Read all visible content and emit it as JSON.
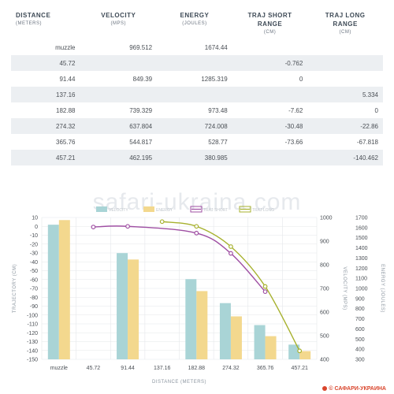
{
  "table": {
    "headers": [
      {
        "label": "DISTANCE",
        "unit": "(METERS)"
      },
      {
        "label": "VELOCITY",
        "unit": "(MPS)"
      },
      {
        "label": "ENERGY",
        "unit": "(JOULES)"
      },
      {
        "label": "TRAJ SHORT RANGE",
        "unit": "(CM)"
      },
      {
        "label": "TRAJ LONG RANGE",
        "unit": "(CM)"
      }
    ],
    "rows": [
      [
        "muzzle",
        "969.512",
        "1674.44",
        "",
        ""
      ],
      [
        "45.72",
        "",
        "",
        "-0.762",
        ""
      ],
      [
        "91.44",
        "849.39",
        "1285.319",
        "0",
        ""
      ],
      [
        "137.16",
        "",
        "",
        "",
        "5.334"
      ],
      [
        "182.88",
        "739.329",
        "973.48",
        "-7.62",
        "0"
      ],
      [
        "274.32",
        "637.804",
        "724.008",
        "-30.48",
        "-22.86"
      ],
      [
        "365.76",
        "544.817",
        "528.77",
        "-73.66",
        "-67.818"
      ],
      [
        "457.21",
        "462.195",
        "380.985",
        "",
        "-140.462"
      ]
    ]
  },
  "watermark": "safari-ukraina.com",
  "copyright": "© САФАРИ-УКРАИНА",
  "chart_data": {
    "type": "bar",
    "categories": [
      "muzzle",
      "45.72",
      "91.44",
      "137.16",
      "182.88",
      "274.32",
      "365.76",
      "457.21"
    ],
    "xlabel": "DISTANCE (METERS)",
    "ylabel_left": "TRAJECTORY (CM)",
    "ylabel_right_inner": "VELOCITY (MPS)",
    "ylabel_right_outer": "ENERGY (JOULES)",
    "legend": [
      "VELOCITY",
      "ENERGY",
      "TRAJ SHORT",
      "TRAJ LONG"
    ],
    "legend_placement": "top",
    "grid": true,
    "axes": {
      "trajectory": {
        "min": -150,
        "max": 10,
        "step": 10
      },
      "velocity": {
        "min": 400,
        "max": 1000,
        "step": 100
      },
      "energy": {
        "min": 300,
        "max": 1700,
        "step": 100
      }
    },
    "series": [
      {
        "name": "VELOCITY",
        "kind": "bar",
        "axis": "velocity",
        "color": "#a9d4d6",
        "values": [
          969.512,
          null,
          849.39,
          null,
          739.329,
          637.804,
          544.817,
          462.195
        ]
      },
      {
        "name": "ENERGY",
        "kind": "bar",
        "axis": "energy",
        "color": "#f3d88e",
        "values": [
          1674.44,
          null,
          1285.319,
          null,
          973.48,
          724.008,
          528.77,
          380.985
        ]
      },
      {
        "name": "TRAJ SHORT",
        "kind": "line",
        "axis": "trajectory",
        "color": "#9f4fa3",
        "values": [
          null,
          -0.762,
          0,
          null,
          -7.62,
          -30.48,
          -73.66,
          null
        ]
      },
      {
        "name": "TRAJ LONG",
        "kind": "line",
        "axis": "trajectory",
        "color": "#a7b12e",
        "values": [
          null,
          null,
          null,
          5.334,
          0,
          -22.86,
          -67.818,
          -140.462
        ]
      }
    ]
  }
}
